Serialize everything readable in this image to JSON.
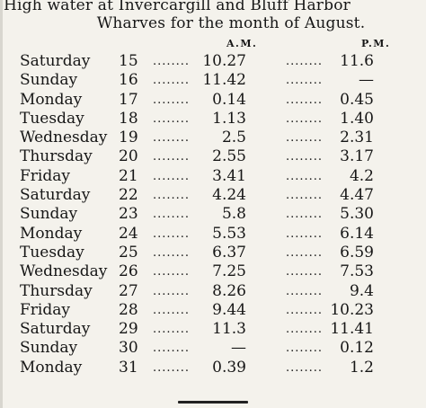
{
  "heading": {
    "line1": "High water at Invercargill and Bluff Harbor",
    "line2": "Wharves for the month of August."
  },
  "columns": {
    "am": "A.M.",
    "pm": "P.M."
  },
  "leader": "........",
  "rows": [
    {
      "day": "Saturday",
      "date": "15",
      "am": "10.27",
      "pm": "11.6"
    },
    {
      "day": "Sunday",
      "date": "16",
      "am": "11.42",
      "pm": "—"
    },
    {
      "day": "Monday",
      "date": "17",
      "am": "0.14",
      "pm": "0.45"
    },
    {
      "day": "Tuesday",
      "date": "18",
      "am": "1.13",
      "pm": "1.40"
    },
    {
      "day": "Wednesday",
      "date": "19",
      "am": "2.5",
      "pm": "2.31"
    },
    {
      "day": "Thursday",
      "date": "20",
      "am": "2.55",
      "pm": "3.17"
    },
    {
      "day": "Friday",
      "date": "21",
      "am": "3.41",
      "pm": "4.2"
    },
    {
      "day": "Saturday",
      "date": "22",
      "am": "4.24",
      "pm": "4.47"
    },
    {
      "day": "Sunday",
      "date": "23",
      "am": "5.8",
      "pm": "5.30"
    },
    {
      "day": "Monday",
      "date": "24",
      "am": "5.53",
      "pm": "6.14"
    },
    {
      "day": "Tuesday",
      "date": "25",
      "am": "6.37",
      "pm": "6.59"
    },
    {
      "day": "Wednesday",
      "date": "26",
      "am": "7.25",
      "pm": "7.53"
    },
    {
      "day": "Thursday",
      "date": "27",
      "am": "8.26",
      "pm": "9.4"
    },
    {
      "day": "Friday",
      "date": "28",
      "am": "9.44",
      "pm": "10.23"
    },
    {
      "day": "Saturday",
      "date": "29",
      "am": "11.3",
      "pm": "11.41"
    },
    {
      "day": "Sunday",
      "date": "30",
      "am": "—",
      "pm": "0.12"
    },
    {
      "day": "Monday",
      "date": "31",
      "am": "0.39",
      "pm": "1.2"
    }
  ]
}
